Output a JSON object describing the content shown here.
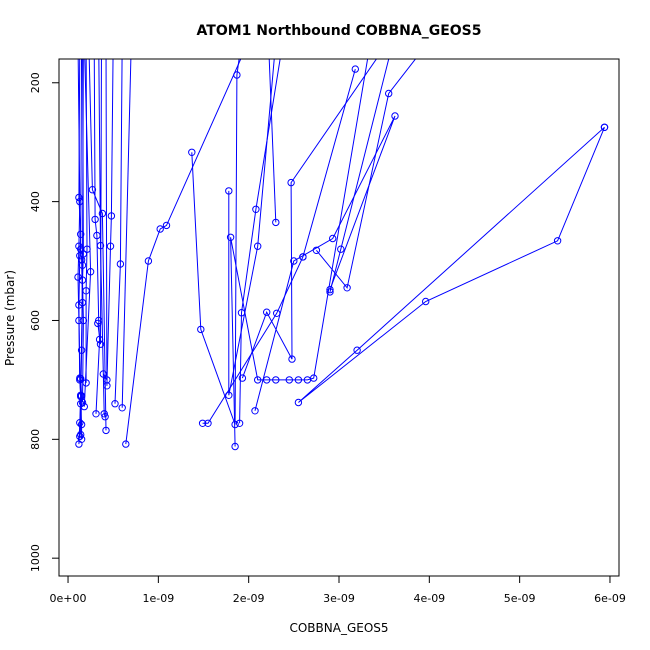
{
  "chart_data": {
    "type": "line",
    "title": "ATOM1 Northbound COBBNA_GEOS5",
    "xlabel": "COBBNA_GEOS5",
    "ylabel": "Pressure (mbar)",
    "xlim": [
      -1e-10,
      6.1e-09
    ],
    "ylim": [
      1030,
      160
    ],
    "y_reversed": true,
    "grid": false,
    "series_color": "#0000ff",
    "x_ticks": [
      {
        "value": 0,
        "label": "0e+00"
      },
      {
        "value": 1e-09,
        "label": "1e-09"
      },
      {
        "value": 2e-09,
        "label": "2e-09"
      },
      {
        "value": 3e-09,
        "label": "3e-09"
      },
      {
        "value": 4e-09,
        "label": "4e-09"
      },
      {
        "value": 5e-09,
        "label": "5e-09"
      },
      {
        "value": 6e-09,
        "label": "6e-09"
      }
    ],
    "y_ticks": [
      {
        "value": 200,
        "label": "200"
      },
      {
        "value": 400,
        "label": "400"
      },
      {
        "value": 600,
        "label": "600"
      },
      {
        "value": 800,
        "label": "800"
      },
      {
        "value": 1000,
        "label": "1000"
      }
    ],
    "series": [
      {
        "points": [
          [
            6.4e-10,
            808
          ],
          [
            8.9e-10,
            500
          ],
          [
            1.02e-09,
            446
          ],
          [
            1.09e-09,
            440
          ],
          [
            2e-09,
            130
          ]
        ]
      },
      {
        "points": [
          [
            5.94e-09,
            275
          ],
          [
            5.42e-09,
            466
          ],
          [
            3.96e-09,
            568
          ],
          [
            2.55e-09,
            738
          ],
          [
            3.2e-09,
            650
          ],
          [
            5.94e-09,
            275
          ]
        ]
      },
      {
        "points": [
          [
            1.49e-09,
            773
          ],
          [
            1.55e-09,
            773
          ],
          [
            2.31e-09,
            588
          ],
          [
            2.6e-09,
            493
          ],
          [
            3.18e-09,
            177
          ],
          [
            2.6e-09,
            493
          ]
        ]
      },
      {
        "points": [
          [
            1.85e-09,
            812
          ],
          [
            1.8e-09,
            460
          ],
          [
            2.1e-09,
            700
          ],
          [
            2.2e-09,
            700
          ],
          [
            2.3e-09,
            700
          ],
          [
            2.45e-09,
            700
          ],
          [
            2.55e-09,
            700
          ],
          [
            2.65e-09,
            700
          ],
          [
            2.72e-09,
            697
          ],
          [
            3.35e-09,
            130
          ]
        ]
      },
      {
        "points": [
          [
            2.07e-09,
            752
          ],
          [
            2.5e-09,
            500
          ],
          [
            2.93e-09,
            462
          ],
          [
            3.62e-09,
            256
          ],
          [
            2.9e-09,
            548
          ]
        ]
      },
      {
        "points": [
          [
            1.37e-09,
            317
          ],
          [
            1.47e-09,
            615
          ],
          [
            1.85e-09,
            775
          ],
          [
            1.87e-09,
            187
          ],
          [
            1.92e-09,
            130
          ]
        ]
      },
      {
        "points": [
          [
            1.78e-09,
            382
          ],
          [
            1.78e-09,
            726
          ],
          [
            2.1e-09,
            475
          ],
          [
            2.3e-09,
            130
          ]
        ]
      },
      {
        "points": [
          [
            1.9e-09,
            773
          ],
          [
            1.92e-09,
            587
          ],
          [
            2.08e-09,
            413
          ],
          [
            2.38e-09,
            130
          ]
        ]
      },
      {
        "points": [
          [
            1.93e-09,
            697
          ],
          [
            2.2e-09,
            586
          ],
          [
            2.48e-09,
            665
          ],
          [
            2.47e-09,
            368
          ],
          [
            3.55e-09,
            130
          ]
        ]
      },
      {
        "points": [
          [
            2.3e-09,
            435
          ],
          [
            2.22e-09,
            130
          ]
        ]
      },
      {
        "points": [
          [
            2.75e-09,
            482
          ],
          [
            3.09e-09,
            545
          ],
          [
            3.55e-09,
            218
          ],
          [
            4e-09,
            130
          ]
        ]
      },
      {
        "points": [
          [
            2.9e-09,
            552
          ],
          [
            3.02e-09,
            480
          ],
          [
            3.6e-09,
            130
          ]
        ]
      },
      {
        "points": [
          [
            5.2e-10,
            740
          ],
          [
            5.8e-10,
            505
          ],
          [
            6e-10,
            130
          ]
        ]
      },
      {
        "points": [
          [
            6e-10,
            747
          ],
          [
            7e-10,
            130
          ]
        ]
      },
      {
        "points": [
          [
            4.2e-10,
            785
          ],
          [
            3.8e-10,
            420
          ],
          [
            2.7e-10,
            380
          ],
          [
            2.3e-10,
            130
          ]
        ]
      },
      {
        "points": [
          [
            4.1e-10,
            762
          ],
          [
            4e-10,
            757
          ],
          [
            3.6e-10,
            474
          ],
          [
            3.4e-10,
            130
          ]
        ]
      },
      {
        "points": [
          [
            4.3e-10,
            710
          ],
          [
            4.7e-10,
            475
          ],
          [
            4.8e-10,
            424
          ],
          [
            5e-10,
            130
          ]
        ]
      },
      {
        "points": [
          [
            3.1e-10,
            757
          ],
          [
            3.5e-10,
            632
          ],
          [
            3.4e-10,
            600
          ],
          [
            3.2e-10,
            457
          ],
          [
            3e-10,
            430
          ],
          [
            2.9e-10,
            130
          ]
        ]
      },
      {
        "points": [
          [
            1.8e-10,
            745
          ],
          [
            2.5e-10,
            518
          ],
          [
            1.8e-10,
            130
          ]
        ]
      },
      {
        "points": [
          [
            1.2e-10,
            808
          ],
          [
            1.3e-10,
            772
          ],
          [
            1.4e-10,
            728
          ],
          [
            1.3e-10,
            700
          ],
          [
            1.2e-10,
            600
          ],
          [
            1.1e-10,
            527
          ],
          [
            1.2e-10,
            475
          ],
          [
            1.3e-10,
            400
          ],
          [
            1.1e-10,
            130
          ]
        ]
      },
      {
        "points": [
          [
            1.3e-10,
            795
          ],
          [
            1.4e-10,
            726
          ],
          [
            1.3e-10,
            697
          ],
          [
            1.2e-10,
            574
          ],
          [
            1.3e-10,
            491
          ],
          [
            1.4e-10,
            455
          ],
          [
            1.2e-10,
            393
          ],
          [
            1.3e-10,
            130
          ]
        ]
      },
      {
        "points": [
          [
            1.4e-10,
            792
          ],
          [
            1.5e-10,
            727
          ],
          [
            1.4e-10,
            698
          ],
          [
            1.6e-10,
            570
          ],
          [
            1.5e-10,
            498
          ],
          [
            1.4e-10,
            480
          ],
          [
            1.5e-10,
            130
          ]
        ]
      },
      {
        "points": [
          [
            1.6e-10,
            738
          ],
          [
            1.7e-10,
            600
          ],
          [
            1.6e-10,
            532
          ],
          [
            1.7e-10,
            488
          ],
          [
            1.6e-10,
            130
          ]
        ]
      },
      {
        "points": [
          [
            1.5e-10,
            800
          ],
          [
            1.5e-10,
            775
          ],
          [
            1.4e-10,
            740
          ],
          [
            1.5e-10,
            650
          ],
          [
            1.6e-10,
            507
          ],
          [
            1.7e-10,
            130
          ]
        ]
      },
      {
        "points": [
          [
            2e-10,
            705
          ],
          [
            2e-10,
            550
          ],
          [
            2.1e-10,
            480
          ],
          [
            2e-10,
            130
          ]
        ]
      },
      {
        "points": [
          [
            3.3e-10,
            605
          ],
          [
            3.6e-10,
            640
          ],
          [
            3.7e-10,
            130
          ]
        ]
      },
      {
        "points": [
          [
            3.9e-10,
            690
          ],
          [
            4.3e-10,
            700
          ],
          [
            4.2e-10,
            130
          ]
        ]
      }
    ]
  }
}
